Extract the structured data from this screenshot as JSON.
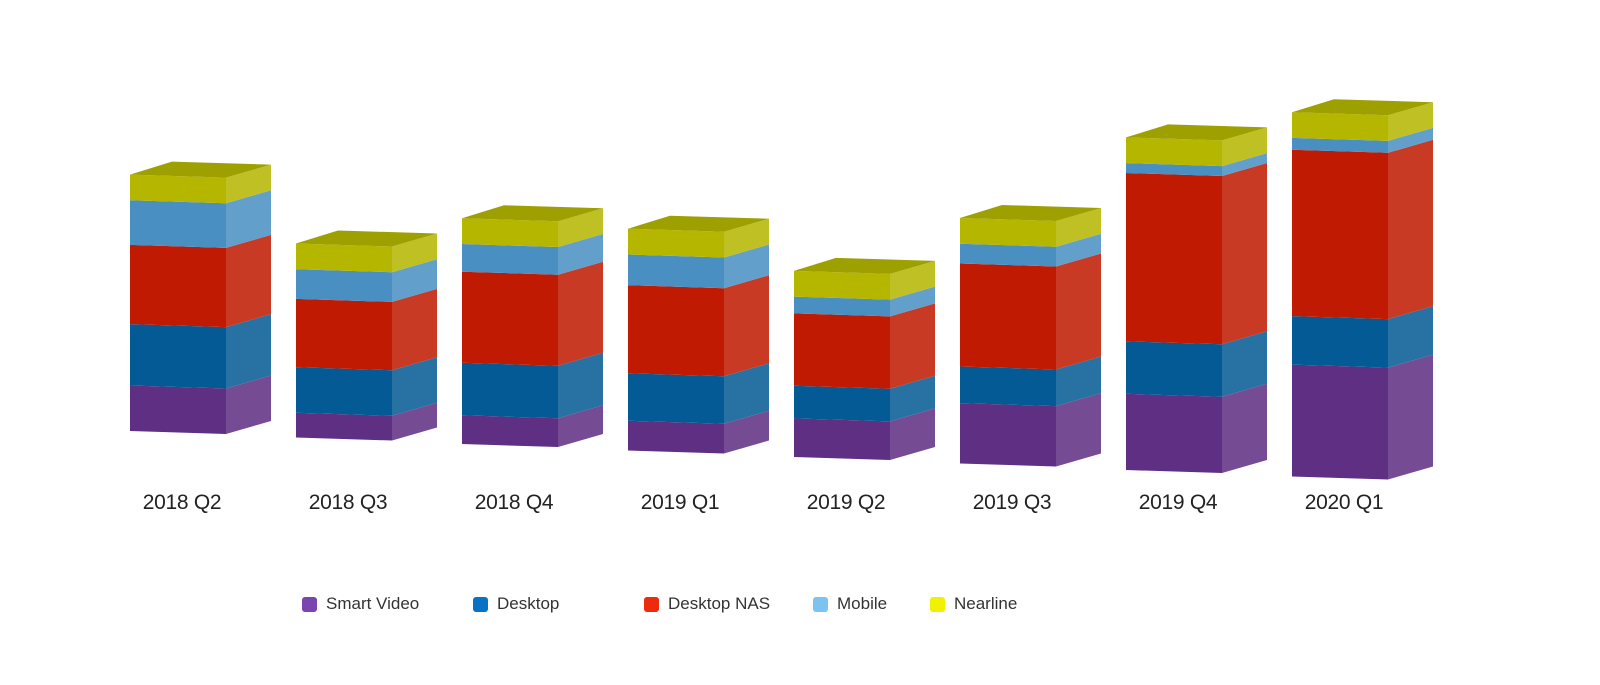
{
  "chart_data": {
    "type": "bar",
    "stacked": true,
    "style": "3d",
    "title": "",
    "xlabel": "",
    "ylabel": "",
    "y_axis_shown": false,
    "grid": false,
    "legend_position": "bottom",
    "categories": [
      "2018 Q2",
      "2018 Q3",
      "2018 Q4",
      "2019 Q1",
      "2019 Q2",
      "2019 Q3",
      "2019 Q4",
      "2020 Q1"
    ],
    "series": [
      {
        "name": "Smart Video",
        "color": "#5e2f82",
        "values": [
          46,
          25,
          29,
          30,
          39,
          61,
          77,
          113
        ]
      },
      {
        "name": "Desktop",
        "color": "#045a94",
        "values": [
          62,
          46,
          53,
          48,
          33,
          37,
          53,
          49
        ]
      },
      {
        "name": "Desktop NAS",
        "color": "#c01a02",
        "values": [
          80,
          69,
          92,
          89,
          73,
          104,
          170,
          168
        ]
      },
      {
        "name": "Mobile",
        "color": "#4a8fc2",
        "values": [
          45,
          30,
          28,
          31,
          17,
          20,
          10,
          12
        ]
      },
      {
        "name": "Nearline",
        "color": "#b4b600",
        "values": [
          26,
          26,
          26,
          26,
          26,
          26,
          26,
          26
        ]
      }
    ]
  },
  "legend": {
    "items": [
      {
        "label": "Smart Video",
        "color": "#7b45b0"
      },
      {
        "label": "Desktop",
        "color": "#0a72c4"
      },
      {
        "label": "Desktop NAS",
        "color": "#ee2a0e"
      },
      {
        "label": "Mobile",
        "color": "#7cc3f2"
      },
      {
        "label": "Nearline",
        "color": "#f0f000"
      }
    ]
  }
}
